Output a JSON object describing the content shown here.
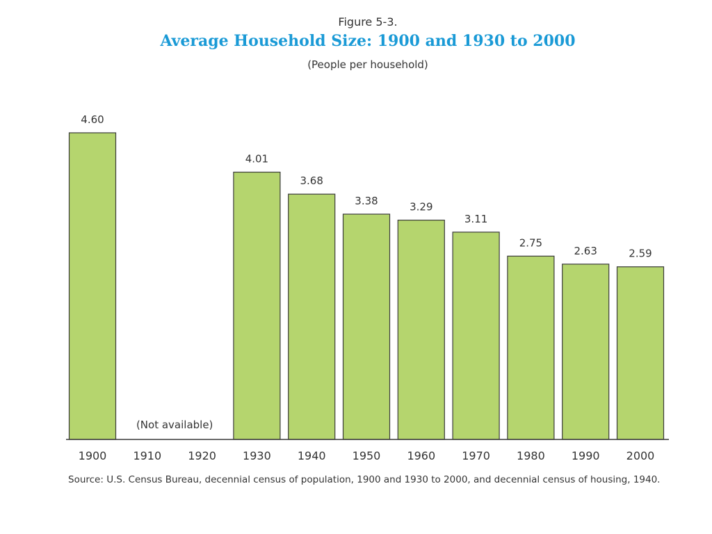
{
  "figure_label": "Figure 5-3.",
  "source_note": "Source:  U.S. Census Bureau, decennial census of population, 1900 and 1930 to 2000, and decennial census of housing, 1940.",
  "colors": {
    "bar_fill": "#b5d56e",
    "bar_stroke": "#3a3a3a",
    "title": "#1a9ad6",
    "text": "#333333"
  },
  "chart_data": {
    "type": "bar",
    "title": "Average Household Size:  1900 and 1930 to 2000",
    "subtitle": "(People per household)",
    "xlabel": "",
    "ylabel": "",
    "categories": [
      "1900",
      "1910",
      "1920",
      "1930",
      "1940",
      "1950",
      "1960",
      "1970",
      "1980",
      "1990",
      "2000"
    ],
    "values": [
      4.6,
      null,
      null,
      4.01,
      3.68,
      3.38,
      3.29,
      3.11,
      2.75,
      2.63,
      2.59
    ],
    "value_labels": [
      "4.60",
      "",
      "",
      "4.01",
      "3.68",
      "3.38",
      "3.29",
      "3.11",
      "2.75",
      "2.63",
      "2.59"
    ],
    "ylim": [
      0,
      4.6
    ],
    "grid": false,
    "annotations": [
      {
        "text": "(Not available)",
        "categories": [
          "1910",
          "1920"
        ]
      }
    ]
  }
}
